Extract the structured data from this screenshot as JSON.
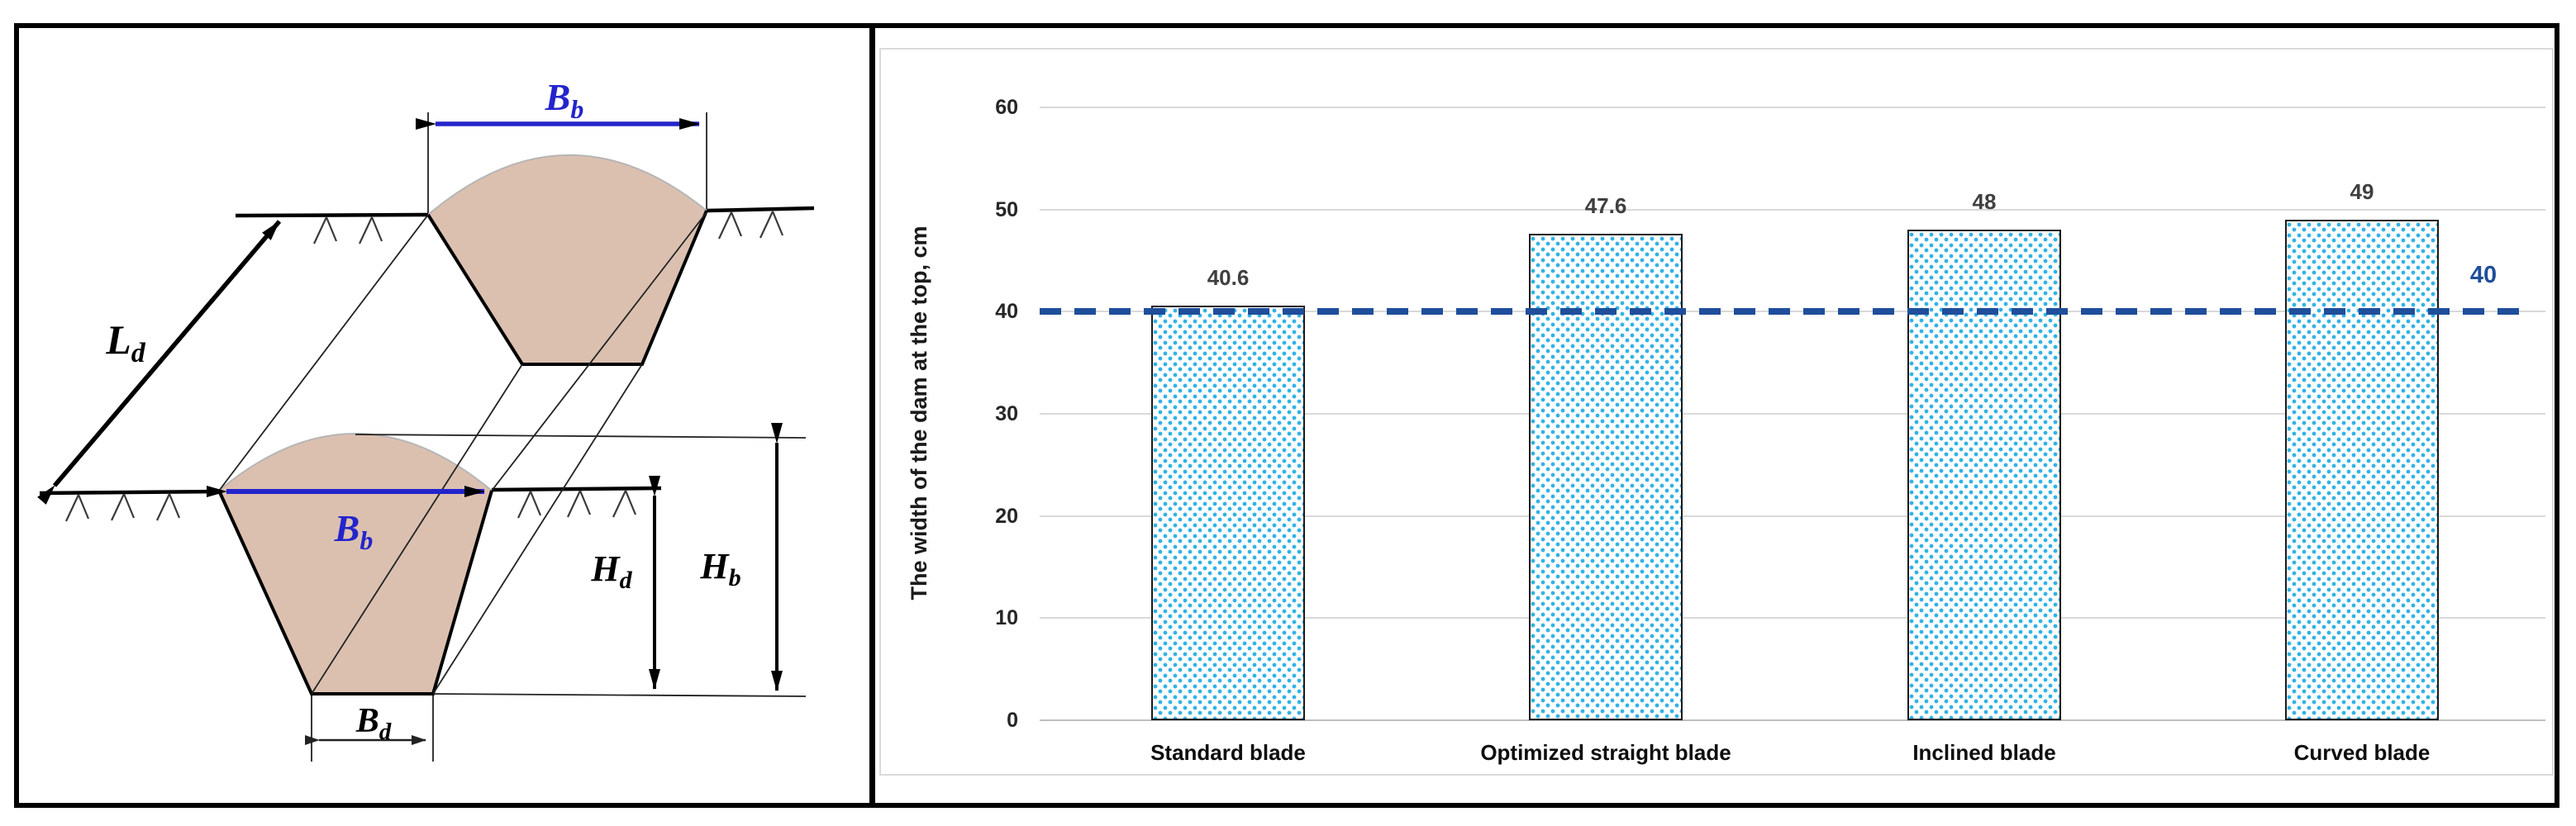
{
  "diagram": {
    "labels": {
      "ld": {
        "main": "L",
        "sub": "d"
      },
      "bb_top": {
        "main": "B",
        "sub": "b"
      },
      "bb_front": {
        "main": "B",
        "sub": "b"
      },
      "bd": {
        "main": "B",
        "sub": "d"
      },
      "hd": {
        "main": "H",
        "sub": "d"
      },
      "hb": {
        "main": "H",
        "sub": "b"
      }
    },
    "colors": {
      "dam_fill": "#dbc0b0",
      "dimension_blue": "#2424cc",
      "outline_black": "#000000"
    }
  },
  "chart_data": {
    "type": "bar",
    "categories": [
      "Standard blade",
      "Optimized straight blade",
      "Inclined blade",
      "Curved blade"
    ],
    "values": [
      40.6,
      47.6,
      48,
      49
    ],
    "data_labels": [
      "40.6",
      "47.6",
      "48",
      "49"
    ],
    "title": "",
    "xlabel": "",
    "ylabel": "The width of the dam at the top, cm",
    "yticks": [
      0,
      10,
      20,
      30,
      40,
      50,
      60
    ],
    "ylim": [
      0,
      65
    ],
    "grid": true,
    "legend": false,
    "reference_line": {
      "value": 40,
      "label": "40",
      "color": "#1f4e9b",
      "style": "dashed"
    },
    "bar_style": {
      "fill_pattern": "cyan stipple dots",
      "dot_color": "#31b2e6",
      "border_color": "#1a1a1a"
    }
  }
}
